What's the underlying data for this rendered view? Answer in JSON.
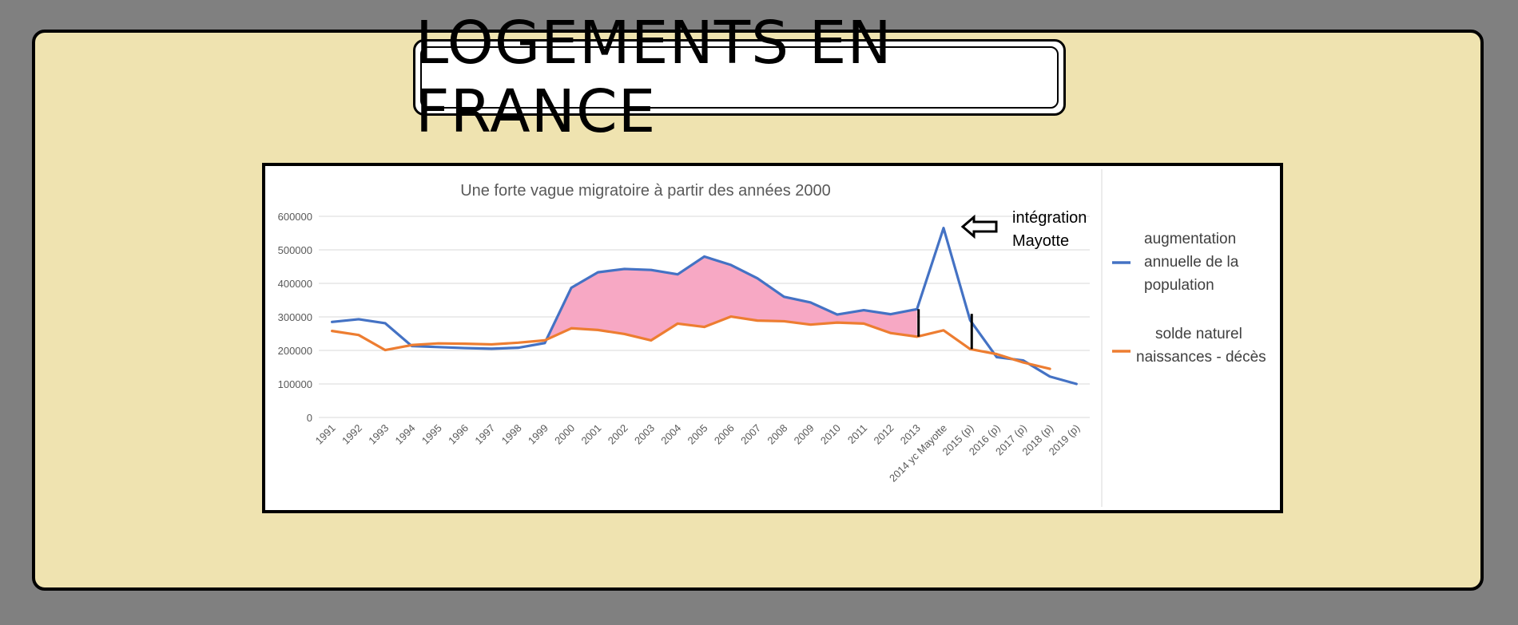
{
  "page": {
    "banner_title": "LOGEMENTS EN FRANCE"
  },
  "colors": {
    "background": "#808080",
    "slide": "#efe3b0",
    "series_population": "#4472c4",
    "series_natural": "#ed7d31",
    "fill_gap": "#f7a8c4",
    "grid": "#d9d9d9"
  },
  "chart_data": {
    "type": "line",
    "title": "Une forte vague migratoire à partir des années 2000",
    "xlabel": "",
    "ylabel": "",
    "ylim": [
      0,
      600000
    ],
    "yticks": [
      0,
      100000,
      200000,
      300000,
      400000,
      500000,
      600000
    ],
    "grid": true,
    "legend_position": "right",
    "categories": [
      "1991",
      "1992",
      "1993",
      "1994",
      "1995",
      "1996",
      "1997",
      "1998",
      "1999",
      "2000",
      "2001",
      "2002",
      "2003",
      "2004",
      "2005",
      "2006",
      "2007",
      "2008",
      "2009",
      "2010",
      "2011",
      "2012",
      "2013",
      "2014 yc Mayotte",
      "2015 (p)",
      "2016 (p)",
      "2017 (p)",
      "2018 (p)",
      "2019 (p)"
    ],
    "series": [
      {
        "name": "augmentation annuelle de la population",
        "values": [
          285000,
          293000,
          281000,
          213000,
          210000,
          207000,
          205000,
          208000,
          222000,
          387000,
          433000,
          443000,
          440000,
          427000,
          480000,
          455000,
          415000,
          360000,
          343000,
          307000,
          320000,
          308000,
          323000,
          565000,
          290000,
          180000,
          170000,
          122000,
          100000
        ]
      },
      {
        "name": "solde naturel naissances - décès",
        "values": [
          258000,
          246000,
          201000,
          216000,
          221000,
          220000,
          218000,
          223000,
          230000,
          266000,
          261000,
          249000,
          230000,
          280000,
          270000,
          301000,
          289000,
          287000,
          277000,
          283000,
          280000,
          252000,
          241000,
          260000,
          204000,
          189000,
          164000,
          145000,
          null
        ]
      }
    ],
    "annotations": [
      "intégration",
      "Mayotte"
    ]
  }
}
